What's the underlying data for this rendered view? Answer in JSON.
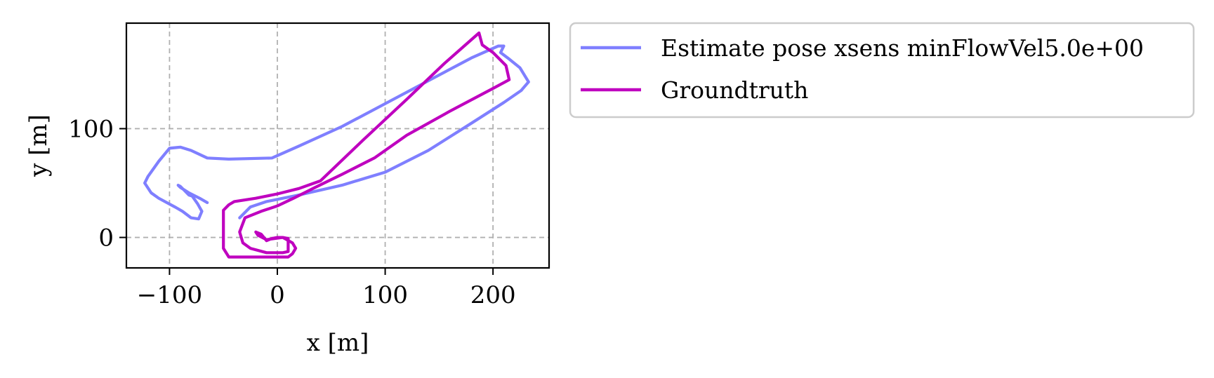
{
  "chart_data": {
    "type": "line",
    "xlabel": "x [m]",
    "ylabel": "y [m]",
    "xlim": [
      -140,
      252
    ],
    "ylim": [
      -28,
      197
    ],
    "xticks": [
      -100,
      0,
      100,
      200
    ],
    "xtick_labels": [
      "−100",
      "0",
      "100",
      "200"
    ],
    "yticks": [
      0,
      100
    ],
    "ytick_labels": [
      "0",
      "100"
    ],
    "grid": true,
    "legend_position": "outside upper right",
    "series": [
      {
        "name": "Estimate pose xsens minFlowVel5.0e+00",
        "color": "#7f7fff",
        "x": [
          -65,
          -72,
          -82,
          -90,
          -92,
          -90,
          -87,
          -82,
          -79,
          -74,
          -70,
          -73,
          -80,
          -88,
          -95,
          -110,
          -117,
          -123,
          -120,
          -110,
          -100,
          -90,
          -80,
          -65,
          -45,
          -5,
          20,
          60,
          100,
          140,
          180,
          205,
          210,
          207,
          215,
          225,
          233,
          226,
          210,
          180,
          140,
          100,
          60,
          20,
          -10,
          -25,
          -35
        ],
        "y": [
          32,
          36,
          41,
          46,
          48,
          47,
          44,
          39,
          38,
          31,
          24,
          17,
          18,
          24,
          28,
          36,
          41,
          50,
          56,
          70,
          82,
          83,
          80,
          73,
          72,
          73,
          84,
          102,
          123,
          144,
          165,
          176,
          176,
          170,
          164,
          156,
          143,
          135,
          124,
          105,
          80,
          60,
          48,
          39,
          33,
          28,
          18
        ]
      },
      {
        "name": "Groundtruth",
        "color": "#bf00bf",
        "x": [
          187,
          155,
          120,
          80,
          40,
          20,
          0,
          -20,
          -40,
          -45,
          -50,
          -50,
          -45,
          -30,
          -10,
          10,
          14,
          17,
          14,
          5,
          -10,
          -18,
          -20,
          -15,
          -10,
          -5,
          0,
          5,
          10,
          10,
          5,
          -10,
          -25,
          -32,
          -35,
          -30,
          -15,
          0,
          15,
          35,
          60,
          90,
          120,
          160,
          200,
          215,
          212,
          200,
          190,
          187
        ],
        "y": [
          188,
          160,
          127,
          90,
          52,
          45,
          40,
          36,
          33,
          30,
          25,
          -10,
          -18,
          -18,
          -18,
          -18,
          -15,
          -10,
          -5,
          0,
          -2,
          2,
          5,
          3,
          -3,
          -1,
          0,
          0,
          -1,
          -13,
          -14,
          -14,
          -10,
          -5,
          5,
          18,
          24,
          29,
          36,
          46,
          58,
          73,
          94,
          116,
          137,
          145,
          158,
          170,
          177,
          188
        ]
      }
    ]
  }
}
